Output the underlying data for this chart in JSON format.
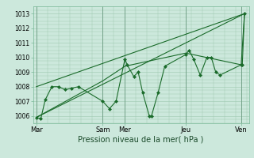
{
  "title": "",
  "xlabel": "Pression niveau de la mer( hPa )",
  "ylabel": "",
  "bg_color": "#cce8dc",
  "grid_color": "#9ec8b0",
  "line_color": "#1a6b2a",
  "ylim": [
    1005.5,
    1013.5
  ],
  "yticks": [
    1006,
    1007,
    1008,
    1009,
    1010,
    1011,
    1012,
    1013
  ],
  "day_labels": [
    "Mar",
    "Sam",
    "Mer",
    "Jeu",
    "Ven"
  ],
  "day_positions": [
    0,
    60,
    80,
    135,
    185
  ],
  "xlim": [
    -3,
    192
  ],
  "series1": [
    [
      0,
      1005.9
    ],
    [
      4,
      1005.8
    ],
    [
      8,
      1007.1
    ],
    [
      14,
      1008.0
    ],
    [
      20,
      1008.0
    ],
    [
      26,
      1007.8
    ],
    [
      32,
      1007.9
    ],
    [
      38,
      1008.0
    ],
    [
      60,
      1007.0
    ],
    [
      66,
      1006.5
    ],
    [
      72,
      1007.0
    ],
    [
      80,
      1009.9
    ],
    [
      82,
      1009.5
    ],
    [
      88,
      1008.7
    ],
    [
      92,
      1009.0
    ],
    [
      96,
      1007.6
    ],
    [
      102,
      1006.0
    ],
    [
      104,
      1006.0
    ],
    [
      110,
      1007.6
    ],
    [
      116,
      1009.4
    ],
    [
      135,
      1010.2
    ],
    [
      138,
      1010.5
    ],
    [
      142,
      1009.9
    ],
    [
      148,
      1008.8
    ],
    [
      154,
      1010.0
    ],
    [
      158,
      1010.0
    ],
    [
      162,
      1009.0
    ],
    [
      166,
      1008.8
    ],
    [
      185,
      1009.5
    ],
    [
      186,
      1009.5
    ],
    [
      188,
      1013.0
    ]
  ],
  "series2": [
    [
      0,
      1005.9
    ],
    [
      60,
      1008.4
    ],
    [
      80,
      1009.4
    ],
    [
      135,
      1010.3
    ],
    [
      185,
      1009.5
    ],
    [
      188,
      1013.0
    ]
  ],
  "series3": [
    [
      0,
      1005.9
    ],
    [
      188,
      1013.0
    ]
  ],
  "series4": [
    [
      0,
      1008.0
    ],
    [
      188,
      1013.0
    ]
  ]
}
